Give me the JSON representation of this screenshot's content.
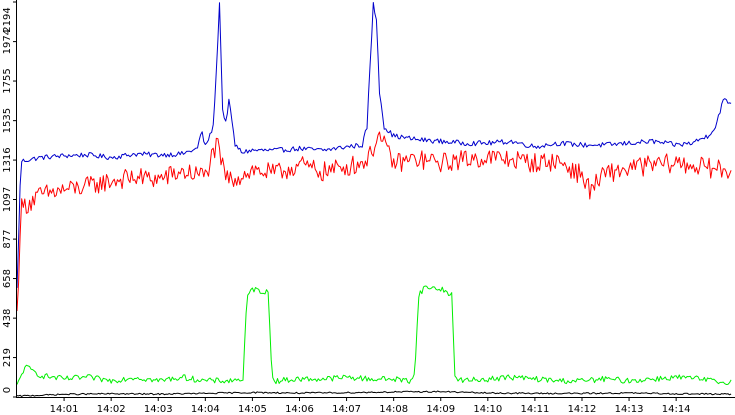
{
  "chart_data": {
    "type": "line",
    "title": "",
    "xlabel": "",
    "ylabel": "",
    "xlim": [
      "14:00:00",
      "14:15:15"
    ],
    "ylim": [
      0,
      2194
    ],
    "grid": false,
    "legend": "none",
    "y_ticks": [
      "0",
      "219",
      "438",
      "658",
      "877",
      "1097",
      "1316",
      "1535",
      "1755",
      "1974",
      "2194"
    ],
    "x_ticks": [
      "14:01",
      "14:02",
      "14:03",
      "14:04",
      "14:05",
      "14:06",
      "14:07",
      "14:08",
      "14:09",
      "14:10",
      "14:11",
      "14:12",
      "14:13",
      "14:14"
    ],
    "series": [
      {
        "color": "#0000cc",
        "x": [
          "14:00:00",
          "14:00:05",
          "14:00:30",
          "14:01:00",
          "14:01:30",
          "14:02:00",
          "14:02:30",
          "14:03:00",
          "14:03:30",
          "14:03:50",
          "14:03:55",
          "14:04:00",
          "14:04:10",
          "14:04:14",
          "14:04:18",
          "14:04:22",
          "14:04:26",
          "14:04:30",
          "14:04:38",
          "14:04:46",
          "14:05:00",
          "14:05:30",
          "14:06:00",
          "14:06:30",
          "14:07:00",
          "14:07:20",
          "14:07:26",
          "14:07:30",
          "14:07:34",
          "14:07:38",
          "14:07:42",
          "14:07:48",
          "14:08:00",
          "14:08:30",
          "14:09:00",
          "14:09:30",
          "14:10:00",
          "14:10:30",
          "14:11:00",
          "14:11:30",
          "14:12:00",
          "14:12:30",
          "14:13:00",
          "14:13:30",
          "14:14:00",
          "14:14:20",
          "14:14:30",
          "14:14:40",
          "14:14:50",
          "14:15:00",
          "14:15:10"
        ],
        "values": [
          600,
          1310,
          1330,
          1340,
          1345,
          1330,
          1350,
          1345,
          1350,
          1380,
          1480,
          1390,
          1500,
          1800,
          2194,
          1600,
          1520,
          1650,
          1400,
          1360,
          1370,
          1370,
          1380,
          1370,
          1390,
          1400,
          1500,
          1840,
          2180,
          2100,
          1700,
          1500,
          1450,
          1430,
          1420,
          1410,
          1410,
          1420,
          1390,
          1410,
          1400,
          1400,
          1410,
          1420,
          1400,
          1410,
          1430,
          1450,
          1500,
          1650,
          1630
        ]
      },
      {
        "color": "#ff0000",
        "x": [
          "14:00:00",
          "14:00:05",
          "14:00:30",
          "14:01:00",
          "14:01:30",
          "14:02:00",
          "14:02:30",
          "14:03:00",
          "14:03:30",
          "14:04:00",
          "14:04:10",
          "14:04:15",
          "14:04:20",
          "14:04:30",
          "14:05:00",
          "14:05:30",
          "14:06:00",
          "14:06:30",
          "14:07:00",
          "14:07:20",
          "14:07:30",
          "14:07:40",
          "14:08:00",
          "14:08:30",
          "14:09:00",
          "14:09:30",
          "14:10:00",
          "14:10:30",
          "14:11:00",
          "14:11:30",
          "14:12:00",
          "14:12:10",
          "14:12:30",
          "14:13:00",
          "14:13:30",
          "14:14:00",
          "14:14:30",
          "14:15:00",
          "14:15:10"
        ],
        "values": [
          450,
          1050,
          1120,
          1150,
          1170,
          1200,
          1220,
          1210,
          1250,
          1230,
          1350,
          1400,
          1300,
          1200,
          1260,
          1240,
          1290,
          1250,
          1280,
          1300,
          1340,
          1460,
          1300,
          1320,
          1300,
          1320,
          1330,
          1320,
          1300,
          1310,
          1230,
          1150,
          1240,
          1270,
          1290,
          1300,
          1280,
          1260,
          1250
        ]
      },
      {
        "color": "#00ee00",
        "x": [
          "14:00:00",
          "14:00:10",
          "14:00:30",
          "14:01:00",
          "14:01:30",
          "14:02:00",
          "14:02:30",
          "14:03:00",
          "14:03:30",
          "14:04:00",
          "14:04:30",
          "14:04:48",
          "14:04:53",
          "14:05:00",
          "14:05:20",
          "14:05:25",
          "14:05:30",
          "14:06:00",
          "14:06:30",
          "14:07:00",
          "14:07:30",
          "14:08:00",
          "14:08:20",
          "14:08:27",
          "14:08:32",
          "14:08:40",
          "14:09:00",
          "14:09:14",
          "14:09:18",
          "14:09:30",
          "14:10:00",
          "14:10:30",
          "14:11:00",
          "14:11:30",
          "14:12:00",
          "14:12:30",
          "14:13:00",
          "14:13:30",
          "14:14:00",
          "14:14:30",
          "14:15:00",
          "14:15:10"
        ],
        "values": [
          60,
          170,
          120,
          100,
          110,
          90,
          110,
          90,
          110,
          90,
          90,
          100,
          550,
          600,
          580,
          120,
          90,
          100,
          100,
          110,
          100,
          100,
          90,
          130,
          570,
          610,
          600,
          570,
          110,
          90,
          100,
          110,
          100,
          90,
          90,
          100,
          90,
          100,
          110,
          100,
          80,
          90
        ]
      },
      {
        "color": "#000000",
        "x": [
          "14:00:00",
          "14:01:00",
          "14:02:00",
          "14:03:00",
          "14:04:00",
          "14:05:00",
          "14:06:00",
          "14:07:00",
          "14:08:00",
          "14:09:00",
          "14:10:00",
          "14:11:00",
          "14:12:00",
          "14:13:00",
          "14:14:00",
          "14:15:00",
          "14:15:10"
        ],
        "values": [
          5,
          15,
          18,
          16,
          20,
          25,
          22,
          24,
          28,
          30,
          22,
          20,
          20,
          22,
          18,
          16,
          15
        ]
      }
    ]
  }
}
